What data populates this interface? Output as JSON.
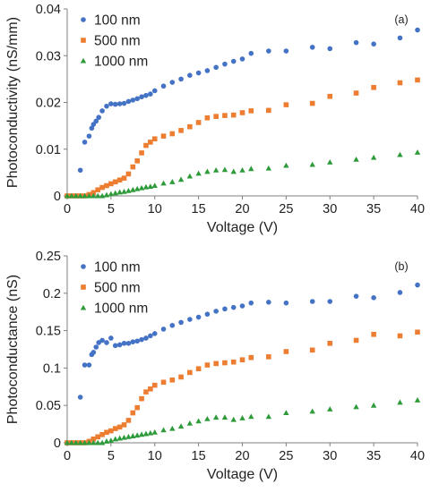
{
  "chart_data": [
    {
      "type": "scatter",
      "panel_label": "(a)",
      "xlabel": "Voltage (V)",
      "ylabel": "Photoconductivity (nS/mm)",
      "xlim": [
        0,
        40
      ],
      "ylim": [
        0,
        0.04
      ],
      "x_ticks": [
        "0",
        "5",
        "10",
        "15",
        "20",
        "25",
        "30",
        "35",
        "40"
      ],
      "y_ticks": [
        "0",
        "0.01",
        "0.02",
        "0.03",
        "0.04"
      ],
      "grid": false,
      "legend_position": "top-left",
      "series": [
        {
          "name": "100 nm",
          "color": "#4472C4",
          "marker": "circle",
          "x": [
            0,
            1.5,
            2,
            2.5,
            2.8,
            3,
            3.3,
            3.6,
            4,
            4.5,
            5,
            5.5,
            6,
            6.5,
            7,
            7.5,
            8,
            8.5,
            9,
            9.5,
            10,
            11,
            12,
            13,
            14,
            15,
            16,
            17,
            18,
            19,
            20,
            21,
            23,
            25,
            28,
            30,
            33,
            35,
            38,
            40
          ],
          "y": [
            0,
            0.0055,
            0.0115,
            0.0128,
            0.0145,
            0.0153,
            0.016,
            0.0168,
            0.0182,
            0.0192,
            0.0197,
            0.0196,
            0.0197,
            0.0198,
            0.0202,
            0.0205,
            0.0208,
            0.0212,
            0.0215,
            0.0218,
            0.0225,
            0.0235,
            0.0243,
            0.025,
            0.0258,
            0.0263,
            0.0268,
            0.0275,
            0.0282,
            0.0288,
            0.0293,
            0.0305,
            0.031,
            0.031,
            0.0318,
            0.0315,
            0.0328,
            0.0325,
            0.0338,
            0.0355
          ]
        },
        {
          "name": "500 nm",
          "color": "#ED7D31",
          "marker": "square",
          "x": [
            0,
            0.5,
            1,
            1.5,
            2,
            2.5,
            3,
            3.5,
            4,
            4.5,
            5,
            5.5,
            6,
            6.5,
            7,
            7.5,
            8,
            8.5,
            9,
            9.5,
            10,
            11,
            12,
            13,
            14,
            15,
            16,
            17,
            18,
            19,
            20,
            21,
            23,
            25,
            28,
            30,
            33,
            35,
            38,
            40
          ],
          "y": [
            0,
            0,
            0,
            0,
            0,
            0.0003,
            0.0007,
            0.0013,
            0.0018,
            0.0022,
            0.0026,
            0.003,
            0.0034,
            0.0038,
            0.0047,
            0.0062,
            0.0075,
            0.0092,
            0.0108,
            0.0115,
            0.0122,
            0.0128,
            0.0133,
            0.014,
            0.0148,
            0.0157,
            0.0167,
            0.017,
            0.0172,
            0.0173,
            0.0178,
            0.0182,
            0.0183,
            0.0195,
            0.0198,
            0.0213,
            0.022,
            0.0232,
            0.0242,
            0.0248
          ]
        },
        {
          "name": "1000 nm",
          "color": "#2E9B3A",
          "marker": "triangle",
          "x": [
            0,
            0.5,
            1,
            1.5,
            2,
            2.5,
            3,
            3.5,
            4,
            4.5,
            5,
            5.5,
            6,
            6.5,
            7,
            7.5,
            8,
            8.5,
            9,
            9.5,
            10,
            11,
            12,
            13,
            14,
            15,
            16,
            17,
            18,
            19,
            20,
            21,
            23,
            25,
            28,
            30,
            33,
            35,
            38,
            40
          ],
          "y": [
            0,
            0,
            0,
            0,
            0,
            0,
            0,
            0,
            0,
            0.0002,
            0.0004,
            0.0006,
            0.0008,
            0.0009,
            0.0011,
            0.0013,
            0.0015,
            0.0017,
            0.0019,
            0.002,
            0.0022,
            0.0027,
            0.003,
            0.0035,
            0.0042,
            0.0048,
            0.0052,
            0.0055,
            0.0056,
            0.0052,
            0.0055,
            0.0058,
            0.0059,
            0.0065,
            0.0067,
            0.0072,
            0.0078,
            0.0082,
            0.0088,
            0.0093
          ]
        }
      ]
    },
    {
      "type": "scatter",
      "panel_label": "(b)",
      "xlabel": "Voltage (V)",
      "ylabel": "Photoconductance (nS)",
      "xlim": [
        0,
        40
      ],
      "ylim": [
        0,
        0.25
      ],
      "x_ticks": [
        "0",
        "5",
        "10",
        "15",
        "20",
        "25",
        "30",
        "35",
        "40"
      ],
      "y_ticks": [
        "0",
        "0.05",
        "0.1",
        "0.15",
        "0.2",
        "0.25"
      ],
      "grid": false,
      "legend_position": "top-left",
      "series": [
        {
          "name": "100 nm",
          "color": "#4472C4",
          "marker": "circle",
          "x": [
            0,
            1.5,
            2,
            2.5,
            2.8,
            3,
            3.3,
            3.6,
            4,
            4.5,
            5,
            5.5,
            6,
            6.5,
            7,
            7.5,
            8,
            8.5,
            9,
            9.5,
            10,
            11,
            12,
            13,
            14,
            15,
            16,
            17,
            18,
            19,
            20,
            21,
            23,
            25,
            28,
            30,
            33,
            35,
            38,
            40
          ],
          "y": [
            0,
            0.061,
            0.104,
            0.104,
            0.118,
            0.121,
            0.128,
            0.134,
            0.137,
            0.134,
            0.14,
            0.13,
            0.131,
            0.133,
            0.133,
            0.135,
            0.136,
            0.138,
            0.14,
            0.143,
            0.146,
            0.152,
            0.157,
            0.161,
            0.165,
            0.168,
            0.172,
            0.176,
            0.179,
            0.181,
            0.183,
            0.187,
            0.188,
            0.187,
            0.189,
            0.189,
            0.196,
            0.194,
            0.201,
            0.211
          ]
        },
        {
          "name": "500 nm",
          "color": "#ED7D31",
          "marker": "square",
          "x": [
            0,
            0.5,
            1,
            1.5,
            2,
            2.5,
            3,
            3.5,
            4,
            4.5,
            5,
            5.5,
            6,
            6.5,
            7,
            7.5,
            8,
            8.5,
            9,
            9.5,
            10,
            11,
            12,
            13,
            14,
            15,
            16,
            17,
            18,
            19,
            20,
            21,
            23,
            25,
            28,
            30,
            33,
            35,
            38,
            40
          ],
          "y": [
            0,
            0,
            0,
            0,
            0,
            0.002,
            0.005,
            0.008,
            0.011,
            0.014,
            0.016,
            0.019,
            0.021,
            0.024,
            0.03,
            0.04,
            0.047,
            0.059,
            0.068,
            0.072,
            0.077,
            0.081,
            0.084,
            0.088,
            0.094,
            0.099,
            0.104,
            0.106,
            0.107,
            0.108,
            0.111,
            0.114,
            0.115,
            0.122,
            0.124,
            0.133,
            0.137,
            0.145,
            0.143,
            0.148
          ]
        },
        {
          "name": "1000 nm",
          "color": "#2E9B3A",
          "marker": "triangle",
          "x": [
            0,
            0.5,
            1,
            1.5,
            2,
            2.5,
            3,
            3.5,
            4,
            4.5,
            5,
            5.5,
            6,
            6.5,
            7,
            7.5,
            8,
            8.5,
            9,
            9.5,
            10,
            11,
            12,
            13,
            14,
            15,
            16,
            17,
            18,
            19,
            20,
            21,
            23,
            25,
            28,
            30,
            33,
            35,
            38,
            40
          ],
          "y": [
            0,
            0,
            0,
            0,
            0,
            0,
            0,
            0,
            0,
            0.002,
            0.003,
            0.005,
            0.006,
            0.007,
            0.008,
            0.009,
            0.01,
            0.011,
            0.012,
            0.013,
            0.014,
            0.017,
            0.019,
            0.022,
            0.026,
            0.029,
            0.032,
            0.034,
            0.034,
            0.031,
            0.033,
            0.035,
            0.035,
            0.04,
            0.042,
            0.045,
            0.048,
            0.05,
            0.054,
            0.057
          ]
        }
      ]
    }
  ]
}
